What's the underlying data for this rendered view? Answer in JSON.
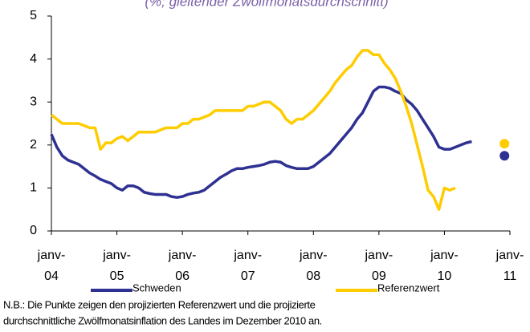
{
  "chart_data": {
    "type": "line",
    "title": "(%; gleitender Zwölfmonatsdurchschnitt)",
    "note": [
      "N.B.: Die Punkte zeigen den projizierten Referenzwert und die projizierte",
      "durchschnittliche Zwölfmonatsinflation des Landes im Dezember 2010 an."
    ],
    "categories": [
      "janv-04",
      null,
      null,
      null,
      null,
      null,
      null,
      null,
      null,
      null,
      null,
      null,
      "janv-05",
      null,
      null,
      null,
      null,
      null,
      null,
      null,
      null,
      null,
      null,
      null,
      "janv-06",
      null,
      null,
      null,
      null,
      null,
      null,
      null,
      null,
      null,
      null,
      null,
      "janv-07",
      null,
      null,
      null,
      null,
      null,
      null,
      null,
      null,
      null,
      null,
      null,
      "janv-08",
      null,
      null,
      null,
      null,
      null,
      null,
      null,
      null,
      null,
      null,
      null,
      "janv-09",
      null,
      null,
      null,
      null,
      null,
      null,
      null,
      null,
      null,
      null,
      null,
      "janv-10",
      null,
      null,
      null,
      null,
      null,
      null,
      null,
      null,
      null,
      null,
      null,
      "janv-11"
    ],
    "series": [
      {
        "name": "Schweden",
        "color": "#2e3192",
        "values": [
          2.25,
          1.95,
          1.75,
          1.65,
          1.6,
          1.55,
          1.45,
          1.35,
          1.28,
          1.2,
          1.15,
          1.1,
          1.0,
          0.95,
          1.05,
          1.05,
          1.0,
          0.9,
          0.87,
          0.85,
          0.85,
          0.85,
          0.8,
          0.78,
          0.8,
          0.85,
          0.88,
          0.9,
          0.95,
          1.05,
          1.15,
          1.25,
          1.32,
          1.4,
          1.45,
          1.45,
          1.48,
          1.5,
          1.52,
          1.55,
          1.6,
          1.62,
          1.6,
          1.52,
          1.48,
          1.45,
          1.45,
          1.45,
          1.5,
          1.6,
          1.7,
          1.8,
          1.95,
          2.1,
          2.25,
          2.4,
          2.6,
          2.75,
          3.0,
          3.25,
          3.35,
          3.35,
          3.32,
          3.25,
          3.2,
          3.05,
          2.95,
          2.8,
          2.6,
          2.4,
          2.2,
          1.95,
          1.9,
          1.9,
          1.95,
          2.0,
          2.05,
          2.08,
          null,
          null,
          null,
          null,
          null,
          1.75,
          null
        ]
      },
      {
        "name": "Referenzwert",
        "color": "#ffcc00",
        "values": [
          2.7,
          2.6,
          2.5,
          2.5,
          2.5,
          2.5,
          2.45,
          2.4,
          2.4,
          1.9,
          2.05,
          2.05,
          2.15,
          2.2,
          2.1,
          2.2,
          2.3,
          2.3,
          2.3,
          2.3,
          2.35,
          2.4,
          2.4,
          2.4,
          2.5,
          2.5,
          2.6,
          2.6,
          2.65,
          2.7,
          2.8,
          2.8,
          2.8,
          2.8,
          2.8,
          2.8,
          2.9,
          2.9,
          2.95,
          3.0,
          3.0,
          2.9,
          2.8,
          2.6,
          2.5,
          2.6,
          2.6,
          2.7,
          2.8,
          2.95,
          3.1,
          3.25,
          3.45,
          3.6,
          3.75,
          3.85,
          4.05,
          4.2,
          4.2,
          4.1,
          4.1,
          3.9,
          3.75,
          3.55,
          3.25,
          2.9,
          2.5,
          2.0,
          1.5,
          0.95,
          0.8,
          0.5,
          1.0,
          0.95,
          1.0,
          null,
          null,
          null,
          null,
          null,
          null,
          null,
          null,
          2.03,
          null
        ]
      }
    ],
    "ylim": [
      0,
      5
    ],
    "yticks": [
      0,
      1,
      2,
      3,
      4,
      5
    ],
    "grid": false
  }
}
